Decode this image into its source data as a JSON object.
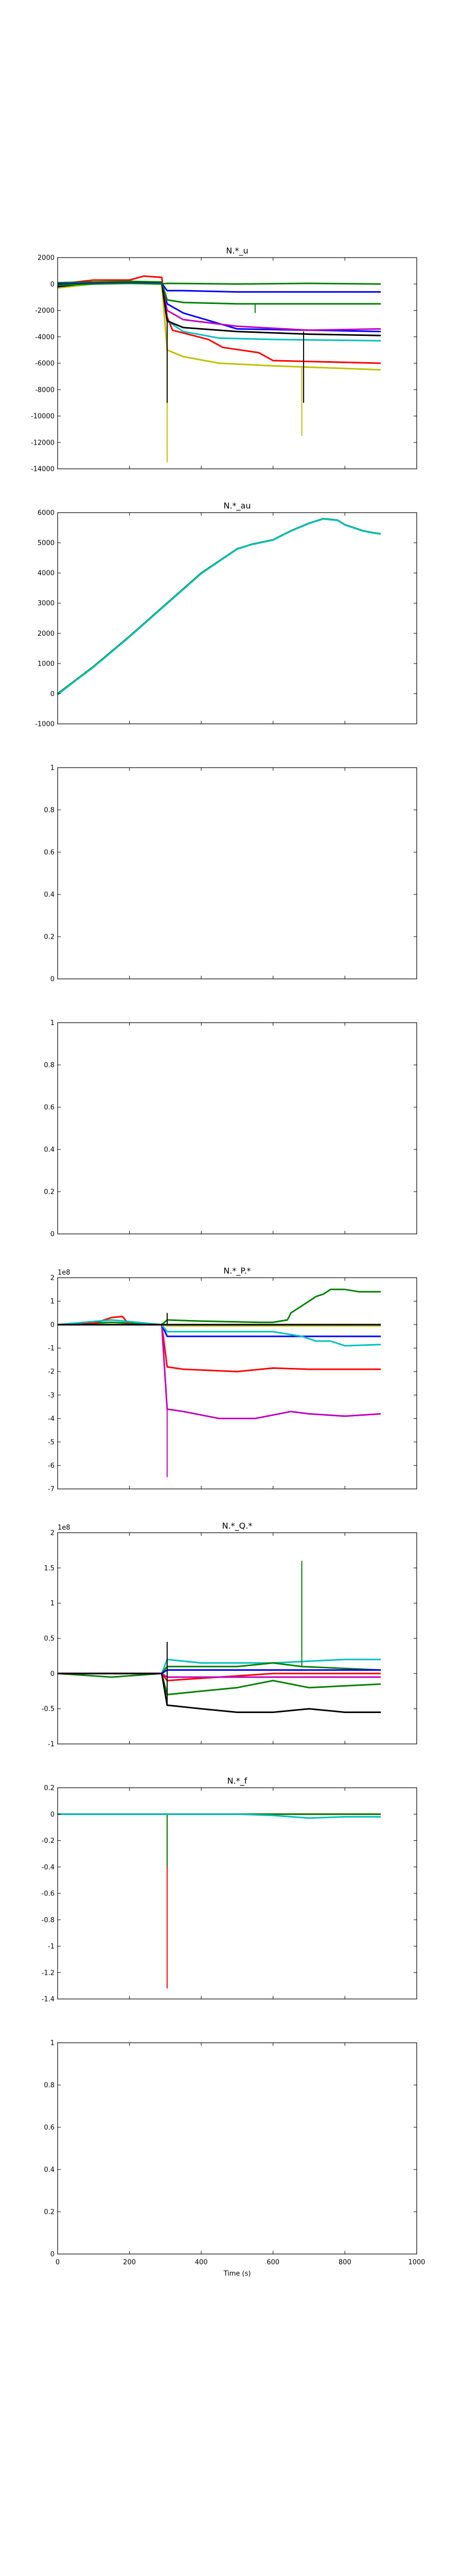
{
  "chart_data": [
    {
      "type": "line",
      "title": "N.*_u",
      "xlim": [
        0,
        1000
      ],
      "ylim": [
        -14000,
        2000
      ],
      "yticks": [
        2000,
        0,
        -2000,
        -4000,
        -6000,
        -8000,
        -10000,
        -12000,
        -14000
      ],
      "show_xticklabels": false,
      "series": [
        {
          "color": "#ff0000",
          "x": [
            0,
            100,
            200,
            240,
            290,
            305,
            320,
            420,
            460,
            560,
            600,
            900
          ],
          "y": [
            0,
            300,
            300,
            600,
            500,
            -2500,
            -3500,
            -4200,
            -4800,
            -5200,
            -5800,
            -6000
          ],
          "spikes": []
        },
        {
          "color": "#00bfbf",
          "x": [
            0,
            100,
            200,
            290,
            305,
            350,
            450,
            600,
            900
          ],
          "y": [
            -200,
            100,
            200,
            100,
            -2800,
            -3600,
            -4100,
            -4200,
            -4300
          ],
          "spikes": []
        },
        {
          "color": "#bfbf00",
          "x": [
            0,
            100,
            200,
            290,
            305,
            350,
            450,
            600,
            900
          ],
          "y": [
            -300,
            0,
            100,
            0,
            -5000,
            -5500,
            -6000,
            -6200,
            -6500
          ],
          "spikes": [
            [
              305,
              -13500
            ],
            [
              680,
              -11500
            ]
          ]
        },
        {
          "color": "#0000ff",
          "x": [
            0,
            100,
            200,
            290,
            305,
            350,
            500,
            700,
            900
          ],
          "y": [
            -100,
            100,
            200,
            100,
            -1500,
            -2200,
            -3400,
            -3500,
            -3600
          ],
          "spikes": []
        },
        {
          "color": "#bf00bf",
          "x": [
            0,
            100,
            200,
            290,
            305,
            350,
            500,
            700,
            900
          ],
          "y": [
            -200,
            100,
            200,
            100,
            -2000,
            -2700,
            -3200,
            -3500,
            -3400
          ],
          "spikes": []
        },
        {
          "color": "#000000",
          "x": [
            0,
            100,
            200,
            290,
            305,
            350,
            500,
            700,
            900
          ],
          "y": [
            -200,
            100,
            150,
            100,
            -2800,
            -3300,
            -3600,
            -3800,
            -3900
          ],
          "spikes": [
            [
              305,
              -9000
            ],
            [
              685,
              -9000
            ]
          ]
        },
        {
          "color": "#008000",
          "x": [
            0,
            100,
            200,
            290,
            305,
            350,
            500,
            700,
            900
          ],
          "y": [
            100,
            150,
            200,
            150,
            -1200,
            -1400,
            -1500,
            -1500,
            -1500
          ],
          "spikes": [
            [
              550,
              -2200
            ]
          ]
        },
        {
          "color": "#0000ff",
          "x": [
            0,
            100,
            200,
            290,
            305,
            350,
            500,
            700,
            900
          ],
          "y": [
            0,
            50,
            100,
            50,
            -500,
            -500,
            -600,
            -600,
            -600
          ],
          "spikes": []
        },
        {
          "color": "#008000",
          "x": [
            0,
            100,
            200,
            290,
            305,
            500,
            700,
            900
          ],
          "y": [
            -100,
            0,
            50,
            0,
            50,
            0,
            50,
            0
          ],
          "spikes": []
        }
      ]
    },
    {
      "type": "line",
      "title": "N.*_au",
      "xlim": [
        0,
        1000
      ],
      "ylim": [
        -1000,
        6000
      ],
      "yticks": [
        6000,
        5000,
        4000,
        3000,
        2000,
        1000,
        0,
        -1000
      ],
      "show_xticklabels": false,
      "series": [
        {
          "color": "#008000",
          "x": [
            0,
            50,
            100,
            200,
            300,
            400,
            500,
            540,
            560,
            600,
            650,
            700,
            740,
            780,
            800,
            850,
            880,
            900
          ],
          "y": [
            0,
            450,
            900,
            1900,
            2950,
            4000,
            4800,
            4950,
            5000,
            5100,
            5400,
            5650,
            5800,
            5750,
            5600,
            5400,
            5330,
            5300
          ]
        },
        {
          "color": "#00bfbf",
          "x": [
            0,
            50,
            100,
            200,
            300,
            400,
            500,
            540,
            560,
            600,
            650,
            700,
            740,
            780,
            800,
            850,
            880,
            900
          ],
          "y": [
            -30,
            430,
            880,
            1880,
            2930,
            3980,
            4790,
            4940,
            4990,
            5090,
            5390,
            5640,
            5790,
            5740,
            5590,
            5390,
            5320,
            5290
          ]
        }
      ]
    },
    {
      "type": "line",
      "title": "",
      "xlim": [
        0,
        1000
      ],
      "ylim": [
        0,
        1
      ],
      "yticks": [
        1.0,
        0.8,
        0.6,
        0.4,
        0.2,
        0.0
      ],
      "show_xticklabels": false,
      "series": []
    },
    {
      "type": "line",
      "title": "",
      "xlim": [
        0,
        1000
      ],
      "ylim": [
        0,
        1
      ],
      "yticks": [
        1.0,
        0.8,
        0.6,
        0.4,
        0.2,
        0.0
      ],
      "show_xticklabels": false,
      "series": []
    },
    {
      "type": "line",
      "title": "N.*_P.*",
      "offset_label": "1e8",
      "xlim": [
        0,
        1000
      ],
      "ylim": [
        -7,
        2
      ],
      "yticks": [
        2,
        1,
        0,
        -1,
        -2,
        -3,
        -4,
        -5,
        -6,
        -7
      ],
      "show_xticklabels": false,
      "series": [
        {
          "color": "#008000",
          "x": [
            0,
            150,
            290,
            305,
            400,
            560,
            600,
            640,
            650,
            680,
            700,
            720,
            740,
            760,
            800,
            840,
            900
          ],
          "y": [
            0,
            0.1,
            0,
            0.2,
            0.15,
            0.1,
            0.1,
            0.2,
            0.5,
            0.8,
            1.0,
            1.2,
            1.3,
            1.5,
            1.5,
            1.4,
            1.4
          ],
          "spikes": []
        },
        {
          "color": "#ff0000",
          "x": [
            0,
            100,
            150,
            180,
            200,
            290,
            305,
            350,
            500,
            600,
            700,
            900
          ],
          "y": [
            0,
            0.05,
            0.3,
            0.35,
            0,
            0,
            -1.8,
            -1.9,
            -2.0,
            -1.85,
            -1.9,
            -1.9
          ],
          "spikes": []
        },
        {
          "color": "#bf00bf",
          "x": [
            0,
            150,
            290,
            305,
            350,
            450,
            550,
            650,
            700,
            800,
            900
          ],
          "y": [
            0,
            0,
            0,
            -3.6,
            -3.7,
            -4.0,
            -4.0,
            -3.7,
            -3.8,
            -3.9,
            -3.8
          ],
          "spikes": [
            [
              305,
              -6.5
            ]
          ]
        },
        {
          "color": "#0000ff",
          "x": [
            0,
            150,
            290,
            305,
            450,
            600,
            900
          ],
          "y": [
            0,
            0,
            0,
            -0.5,
            -0.5,
            -0.5,
            -0.5
          ],
          "spikes": []
        },
        {
          "color": "#00bfbf",
          "x": [
            0,
            150,
            290,
            305,
            450,
            600,
            680,
            720,
            760,
            800,
            900
          ],
          "y": [
            0,
            0.2,
            0,
            -0.3,
            -0.3,
            -0.3,
            -0.5,
            -0.7,
            -0.7,
            -0.9,
            -0.85
          ],
          "spikes": []
        },
        {
          "color": "#bfbf00",
          "x": [
            0,
            290,
            305,
            900
          ],
          "y": [
            0,
            0,
            -0.05,
            -0.05
          ],
          "spikes": []
        },
        {
          "color": "#000000",
          "x": [
            0,
            290,
            305,
            900
          ],
          "y": [
            0,
            0,
            0,
            0
          ],
          "spikes": [
            [
              305,
              0.5
            ]
          ]
        }
      ]
    },
    {
      "type": "line",
      "title": "N.*_Q.*",
      "offset_label": "1e8",
      "xlim": [
        0,
        1000
      ],
      "ylim": [
        -1,
        2
      ],
      "yticks": [
        2.0,
        1.5,
        1.0,
        0.5,
        0.0,
        -0.5,
        -1.0
      ],
      "show_xticklabels": false,
      "series": [
        {
          "color": "#00bfbf",
          "x": [
            0,
            200,
            290,
            305,
            400,
            600,
            800,
            900
          ],
          "y": [
            0,
            0,
            0,
            0.2,
            0.15,
            0.15,
            0.2,
            0.2
          ],
          "spikes": []
        },
        {
          "color": "#008000",
          "x": [
            0,
            150,
            290,
            305,
            400,
            500,
            600,
            680,
            900
          ],
          "y": [
            0,
            -0.05,
            0,
            0.1,
            0.1,
            0.1,
            0.15,
            0.1,
            0.05
          ],
          "spikes": [
            [
              680,
              1.6
            ]
          ]
        },
        {
          "color": "#008000",
          "x": [
            0,
            290,
            305,
            400,
            500,
            600,
            700,
            900
          ],
          "y": [
            0,
            0,
            -0.3,
            -0.25,
            -0.2,
            -0.1,
            -0.2,
            -0.15
          ],
          "spikes": []
        },
        {
          "color": "#0000ff",
          "x": [
            0,
            290,
            305,
            900
          ],
          "y": [
            0,
            0,
            0.05,
            0.05
          ],
          "spikes": []
        },
        {
          "color": "#ff0000",
          "x": [
            0,
            290,
            305,
            450,
            600,
            900
          ],
          "y": [
            0,
            0,
            -0.1,
            -0.05,
            0.0,
            0.0
          ],
          "spikes": []
        },
        {
          "color": "#bf00bf",
          "x": [
            0,
            290,
            305,
            600,
            900
          ],
          "y": [
            0,
            0,
            -0.05,
            -0.05,
            -0.05
          ],
          "spikes": []
        },
        {
          "color": "#000000",
          "x": [
            0,
            290,
            305,
            400,
            500,
            600,
            700,
            800,
            900
          ],
          "y": [
            0,
            0,
            -0.45,
            -0.5,
            -0.55,
            -0.55,
            -0.5,
            -0.55,
            -0.55
          ],
          "spikes": [
            [
              305,
              0.45
            ]
          ]
        }
      ]
    },
    {
      "type": "line",
      "title": "N.*_f",
      "xlim": [
        0,
        1000
      ],
      "ylim": [
        -1.4,
        0.2
      ],
      "yticks": [
        0.2,
        0.0,
        -0.2,
        -0.4,
        -0.6,
        -0.8,
        -1.0,
        -1.2,
        -1.4
      ],
      "show_xticklabels": false,
      "series": [
        {
          "color": "#ff0000",
          "x": [
            0,
            300,
            305,
            900
          ],
          "y": [
            0,
            0,
            0,
            0
          ],
          "spikes": [
            [
              305,
              -1.32
            ]
          ]
        },
        {
          "color": "#008000",
          "x": [
            0,
            300,
            305,
            900
          ],
          "y": [
            0,
            0,
            0,
            0
          ],
          "spikes": [
            [
              305,
              -0.4
            ]
          ]
        },
        {
          "color": "#00bfbf",
          "x": [
            0,
            100,
            200,
            300,
            305,
            400,
            500,
            600,
            700,
            800,
            900
          ],
          "y": [
            0,
            0,
            0,
            0,
            0,
            0,
            0,
            -0.01,
            -0.03,
            -0.02,
            -0.02
          ],
          "spikes": []
        }
      ]
    },
    {
      "type": "line",
      "title": "",
      "xlim": [
        0,
        1000
      ],
      "ylim": [
        0,
        1
      ],
      "yticks": [
        1.0,
        0.8,
        0.6,
        0.4,
        0.2,
        0.0
      ],
      "xticks": [
        0,
        200,
        400,
        600,
        800,
        1000
      ],
      "xlabel": "Time (s)",
      "show_xticklabels": true,
      "series": []
    }
  ]
}
